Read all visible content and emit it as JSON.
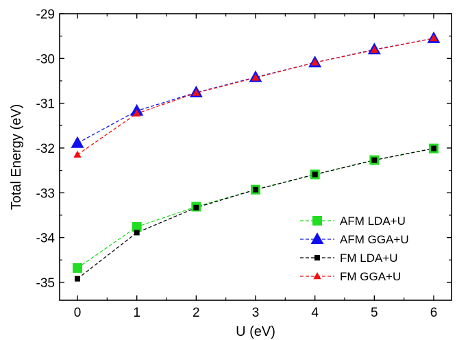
{
  "chart_data": {
    "type": "line",
    "xlabel": "U (eV)",
    "ylabel": "Total Energy (eV)",
    "xlim": [
      -0.3,
      6.3
    ],
    "ylim": [
      -35.4,
      -29.0
    ],
    "xticks": [
      0,
      1,
      2,
      3,
      4,
      5,
      6
    ],
    "yticks": [
      -35,
      -34,
      -33,
      -32,
      -31,
      -30,
      -29
    ],
    "legend_position": "bottom-right",
    "grid": false,
    "series": [
      {
        "name": "AFM LDA+U",
        "color": "#22dd22",
        "marker": "square-large",
        "x": [
          0,
          1,
          2,
          3,
          4,
          5,
          6
        ],
        "y": [
          -34.68,
          -33.76,
          -33.31,
          -32.93,
          -32.59,
          -32.27,
          -32.01
        ]
      },
      {
        "name": "AFM GGA+U",
        "color": "#1010ee",
        "marker": "triangle-large",
        "x": [
          0,
          1,
          2,
          3,
          4,
          5,
          6
        ],
        "y": [
          -31.89,
          -31.17,
          -30.76,
          -30.42,
          -30.09,
          -29.8,
          -29.55
        ]
      },
      {
        "name": "FM LDA+U",
        "color": "#000000",
        "marker": "square-small",
        "x": [
          0,
          1,
          2,
          3,
          4,
          5,
          6
        ],
        "y": [
          -34.92,
          -33.89,
          -33.33,
          -32.93,
          -32.59,
          -32.27,
          -32.01
        ]
      },
      {
        "name": "FM GGA+U",
        "color": "#ee1111",
        "marker": "triangle-small",
        "x": [
          0,
          1,
          2,
          3,
          4,
          5,
          6
        ],
        "y": [
          -32.15,
          -31.23,
          -30.77,
          -30.43,
          -30.09,
          -29.81,
          -29.55
        ]
      }
    ]
  }
}
